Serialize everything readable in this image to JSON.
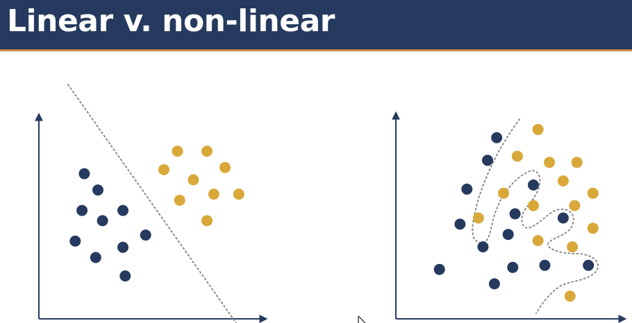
{
  "slide": {
    "title": "Linear v. non-linear"
  },
  "colors": {
    "header_bg": "#253a5e",
    "header_accent": "#c8844a",
    "title_text": "#ffffff",
    "navy_point": "#253a5e",
    "gold_point": "#d9a83a",
    "axis": "#253a5e",
    "boundary": "#8a8a8a"
  },
  "chart_data": [
    {
      "type": "scatter",
      "title": "",
      "xlabel": "",
      "ylabel": "",
      "grid": false,
      "xlim": [
        0,
        10
      ],
      "ylim": [
        0,
        10
      ],
      "series": [
        {
          "color": "navy",
          "points": [
            [
              2.0,
              7.1
            ],
            [
              2.6,
              6.3
            ],
            [
              1.9,
              5.3
            ],
            [
              3.7,
              5.3
            ],
            [
              2.8,
              4.8
            ],
            [
              1.6,
              3.8
            ],
            [
              3.7,
              3.5
            ],
            [
              4.7,
              4.1
            ],
            [
              2.5,
              3.0
            ],
            [
              3.8,
              2.1
            ]
          ]
        },
        {
          "color": "gold",
          "points": [
            [
              6.1,
              8.2
            ],
            [
              7.4,
              8.2
            ],
            [
              5.5,
              7.3
            ],
            [
              8.2,
              7.4
            ],
            [
              6.8,
              6.8
            ],
            [
              6.2,
              5.8
            ],
            [
              7.7,
              6.1
            ],
            [
              8.8,
              6.1
            ],
            [
              7.4,
              4.8
            ]
          ]
        }
      ],
      "boundary": "linear"
    },
    {
      "type": "scatter",
      "title": "",
      "xlabel": "",
      "ylabel": "",
      "grid": false,
      "xlim": [
        0,
        10
      ],
      "ylim": [
        0,
        10
      ],
      "series": [
        {
          "color": "navy",
          "points": [
            [
              4.4,
              8.8
            ],
            [
              4.0,
              7.7
            ],
            [
              3.1,
              6.3
            ],
            [
              6.0,
              6.5
            ],
            [
              2.8,
              4.6
            ],
            [
              5.2,
              5.1
            ],
            [
              7.3,
              4.9
            ],
            [
              4.9,
              4.1
            ],
            [
              3.8,
              3.5
            ],
            [
              1.9,
              2.4
            ],
            [
              5.1,
              2.5
            ],
            [
              6.5,
              2.6
            ],
            [
              8.4,
              2.6
            ],
            [
              4.3,
              1.7
            ]
          ]
        },
        {
          "color": "gold",
          "points": [
            [
              6.2,
              9.2
            ],
            [
              5.3,
              7.9
            ],
            [
              6.7,
              7.6
            ],
            [
              7.9,
              7.6
            ],
            [
              7.3,
              6.7
            ],
            [
              4.7,
              6.1
            ],
            [
              8.6,
              6.1
            ],
            [
              7.8,
              5.5
            ],
            [
              6.0,
              5.5
            ],
            [
              3.6,
              4.9
            ],
            [
              8.6,
              4.4
            ],
            [
              6.2,
              3.8
            ],
            [
              7.7,
              3.5
            ],
            [
              7.6,
              1.1
            ]
          ]
        }
      ],
      "boundary": "non-linear"
    }
  ]
}
